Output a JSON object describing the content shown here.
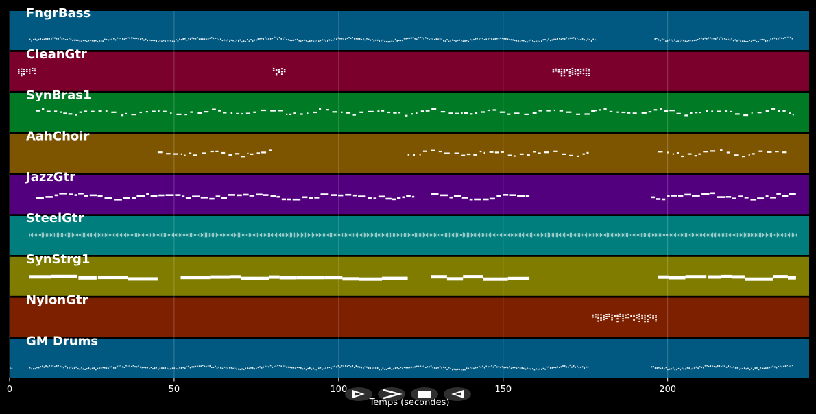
{
  "chart_data": {
    "type": "piano-roll",
    "xlabel": "Temps (secondes)",
    "xlim": [
      0,
      243
    ],
    "xticks": [
      0,
      50,
      100,
      150,
      200
    ],
    "grid": true,
    "tracks": [
      {
        "name": "FngrBass",
        "color": "#015982",
        "segments": [
          [
            6,
            178
          ],
          [
            196,
            238
          ]
        ],
        "style": "fine"
      },
      {
        "name": "CleanGtr",
        "color": "#7b002b",
        "segments": [
          [
            2.5,
            8
          ],
          [
            80,
            84
          ],
          [
            165,
            176
          ]
        ],
        "style": "chords"
      },
      {
        "name": "SynBras1",
        "color": "#007a25",
        "segments": [
          [
            8,
            83
          ],
          [
            84,
            124
          ],
          [
            125,
            178
          ],
          [
            178,
            239
          ]
        ],
        "style": "phrase"
      },
      {
        "name": "AahChoir",
        "color": "#7d5500",
        "segments": [
          [
            45,
            80
          ],
          [
            121,
            176
          ],
          [
            197,
            236
          ]
        ],
        "style": "phrase"
      },
      {
        "name": "JazzGtr",
        "color": "#53007e",
        "segments": [
          [
            8,
            123
          ],
          [
            128,
            158
          ],
          [
            195,
            239
          ]
        ],
        "style": "melody"
      },
      {
        "name": "SteelGtr",
        "color": "#007d7d",
        "segments": [
          [
            6,
            239
          ]
        ],
        "style": "dense"
      },
      {
        "name": "SynStrg1",
        "color": "#7f7c00",
        "segments": [
          [
            6,
            45
          ],
          [
            52,
            121
          ],
          [
            128,
            158
          ],
          [
            197,
            239
          ]
        ],
        "style": "sustained"
      },
      {
        "name": "NylonGtr",
        "color": "#7d2000",
        "segments": [
          [
            177,
            197
          ]
        ],
        "style": "chords"
      },
      {
        "name": "GM Drums",
        "color": "#015982",
        "segments": [
          [
            0,
            1
          ],
          [
            6,
            176
          ],
          [
            195,
            238
          ]
        ],
        "style": "fine"
      }
    ]
  },
  "controls": [
    {
      "name": "play-button",
      "icon": "play-icon"
    },
    {
      "name": "fast-forward-button",
      "icon": "fast-forward-icon"
    },
    {
      "name": "stop-button",
      "icon": "stop-icon"
    },
    {
      "name": "rewind-button",
      "icon": "rewind-icon"
    }
  ]
}
